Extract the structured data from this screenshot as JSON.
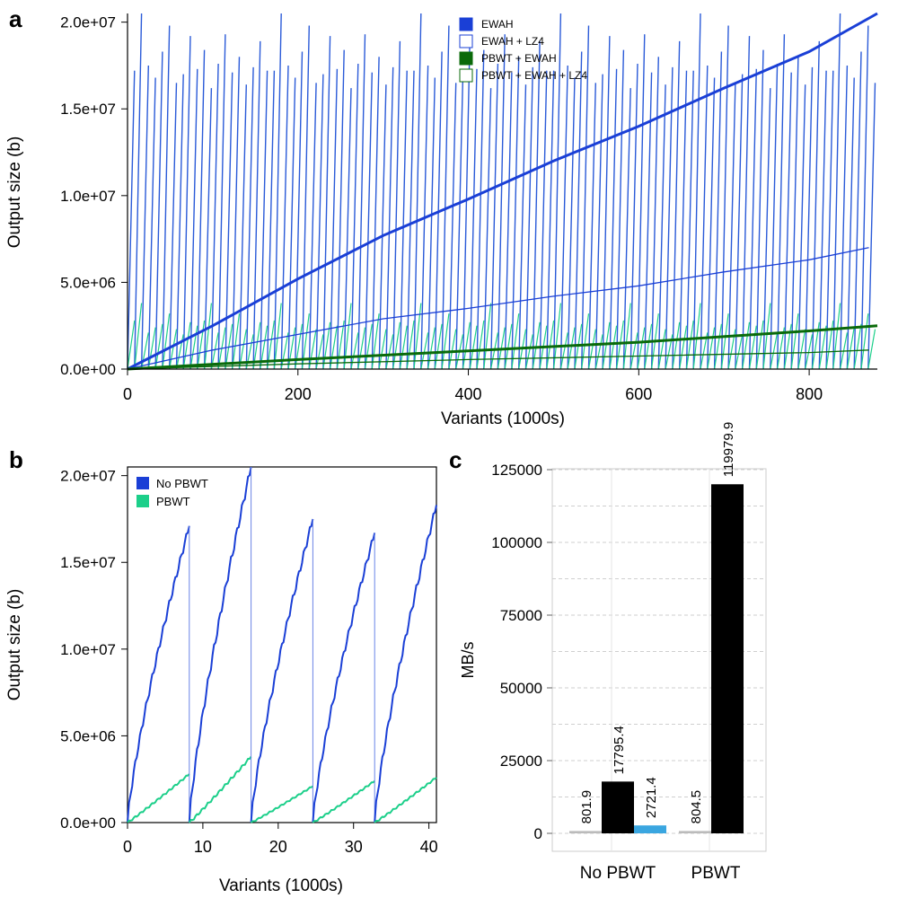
{
  "chart_data": [
    {
      "panel": "a",
      "type": "line",
      "xlabel": "Variants (1000s)",
      "ylabel": "Output size (b)",
      "xlim": [
        0,
        880
      ],
      "ylim": [
        0,
        20500000
      ],
      "xticks": [
        0,
        200,
        400,
        600,
        800
      ],
      "xtick_labels": [
        "0",
        "200",
        "400",
        "600",
        "800"
      ],
      "yticks": [
        0,
        5000000,
        10000000,
        15000000,
        20000000
      ],
      "ytick_labels": [
        "0.0e+00",
        "5.0e+06",
        "1.0e+07",
        "1.5e+07",
        "2.0e+07"
      ],
      "legend": [
        "EWAH",
        "EWAH + LZ4",
        "PBWT + EWAH",
        "PBWT + EWAH + LZ4"
      ],
      "legend_position": "top-right",
      "series": [
        {
          "name": "EWAH",
          "x": [
            0,
            100,
            200,
            300,
            400,
            500,
            600,
            700,
            800,
            880
          ],
          "values": [
            0,
            2500000,
            5200000,
            7700000,
            9800000,
            12000000,
            14000000,
            16200000,
            18300000,
            20500000
          ]
        },
        {
          "name": "EWAH + LZ4",
          "x": [
            0,
            100,
            200,
            300,
            400,
            500,
            600,
            700,
            800,
            870
          ],
          "values": [
            0,
            1100000,
            2000000,
            2900000,
            3500000,
            4200000,
            4800000,
            5600000,
            6300000,
            7000000
          ]
        },
        {
          "name": "PBWT + EWAH",
          "x": [
            0,
            200,
            400,
            600,
            800,
            880
          ],
          "values": [
            0,
            550000,
            1050000,
            1550000,
            2200000,
            2500000
          ]
        },
        {
          "name": "PBWT + EWAH + LZ4",
          "x": [
            0,
            200,
            400,
            600,
            800,
            870
          ],
          "values": [
            0,
            300000,
            550000,
            750000,
            950000,
            1100000
          ]
        }
      ],
      "sawtooth": {
        "period": 8.2,
        "note": "per-chunk reset sawtooth of output size",
        "peaks_no_pbwt": [
          17200000,
          20500000,
          17500000,
          16800000,
          18300000,
          19800000,
          16500000,
          17000000,
          19200000,
          17300000,
          18400000,
          16200000,
          17600000,
          19300000,
          17100000,
          18000000,
          16400000,
          17400000,
          18900000,
          17200000
        ],
        "peaks_pbwt": [
          2800000,
          3800000,
          2100000,
          2400000,
          2600000,
          3200000,
          2300000,
          2000000,
          2700000,
          2500000
        ]
      }
    },
    {
      "panel": "b",
      "type": "line",
      "xlabel": "Variants (1000s)",
      "ylabel": "Output size (b)",
      "xlim": [
        0,
        41
      ],
      "ylim": [
        0,
        20500000
      ],
      "xticks": [
        0,
        10,
        20,
        30,
        40
      ],
      "xtick_labels": [
        "0",
        "10",
        "20",
        "30",
        "40"
      ],
      "yticks": [
        0,
        5000000,
        10000000,
        15000000,
        20000000
      ],
      "ytick_labels": [
        "0.0e+00",
        "5.0e+06",
        "1.0e+07",
        "1.5e+07",
        "2.0e+07"
      ],
      "legend": [
        "No PBWT",
        "PBWT"
      ],
      "legend_position": "top-left",
      "segments": [
        {
          "start": 0,
          "end": 8.2
        },
        {
          "start": 8.2,
          "end": 16.4
        },
        {
          "start": 16.4,
          "end": 24.6
        },
        {
          "start": 24.6,
          "end": 32.8
        },
        {
          "start": 32.8,
          "end": 41
        }
      ],
      "series": [
        {
          "name": "No PBWT",
          "peaks": [
            17100000,
            20500000,
            17500000,
            16700000,
            18300000
          ]
        },
        {
          "name": "PBWT",
          "peaks": [
            2800000,
            3800000,
            2100000,
            2400000,
            2600000
          ]
        }
      ]
    },
    {
      "panel": "c",
      "type": "bar",
      "ylabel": "MB/s",
      "ylim": [
        0,
        125000
      ],
      "yticks": [
        0,
        25000,
        50000,
        75000,
        100000,
        125000
      ],
      "ytick_labels": [
        "0",
        "25000",
        "50000",
        "75000",
        "100000",
        "125000"
      ],
      "categories": [
        "No PBWT",
        "PBWT"
      ],
      "bars": [
        {
          "group": "No PBWT",
          "value": 801.9,
          "label": "801.9",
          "color": "#bbbbbb"
        },
        {
          "group": "No PBWT",
          "value": 17795.4,
          "label": "17795.4",
          "color": "#000000"
        },
        {
          "group": "No PBWT",
          "value": 2721.4,
          "label": "2721.4",
          "color": "#3aa6e0"
        },
        {
          "group": "PBWT",
          "value": 804.5,
          "label": "804.5",
          "color": "#bbbbbb"
        },
        {
          "group": "PBWT",
          "value": 119979.9,
          "label": "119979.9",
          "color": "#000000"
        }
      ]
    }
  ],
  "panel_labels": {
    "a": "a",
    "b": "b",
    "c": "c"
  },
  "colors": {
    "ewah": "#1a3fd6",
    "ewah_light": "#2a5ad8",
    "pbwt": "#1ccf8a",
    "pbwt_dark": "#0a6a0a"
  }
}
